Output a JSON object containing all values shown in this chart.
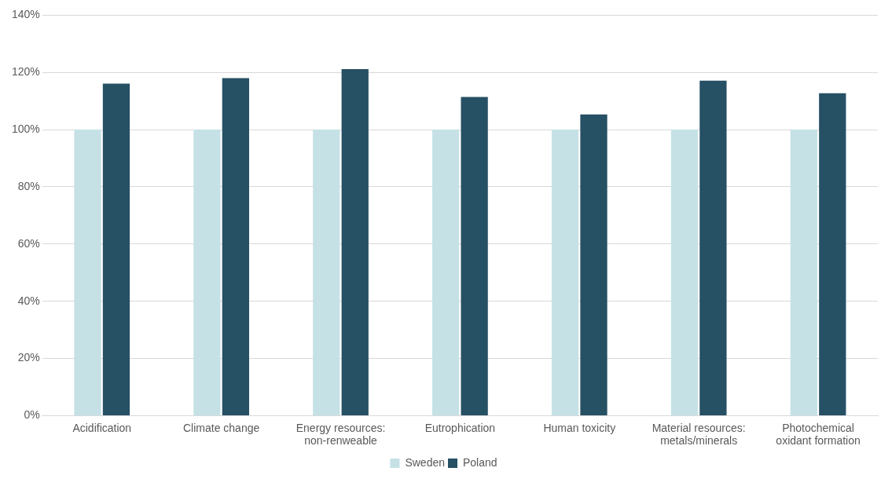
{
  "chart_data": {
    "type": "bar",
    "categories": [
      "Acidification",
      "Climate change",
      "Energy resources: non-renweable",
      "Eutrophication",
      "Human toxicity",
      "Material resources: metals/minerals",
      "Photochemical oxidant formation"
    ],
    "series": [
      {
        "name": "Sweden",
        "color": "#c5e1e6",
        "values": [
          100,
          100,
          100,
          100,
          100,
          100,
          100
        ]
      },
      {
        "name": "Poland",
        "color": "#265064",
        "values": [
          116.1,
          118.0,
          121.2,
          111.4,
          105.3,
          117.1,
          112.7
        ]
      }
    ],
    "ylim": [
      0,
      140
    ],
    "yticks": [
      {
        "value": 0,
        "label": "0%"
      },
      {
        "value": 20,
        "label": "20%"
      },
      {
        "value": 40,
        "label": "40%"
      },
      {
        "value": 60,
        "label": "60%"
      },
      {
        "value": 80,
        "label": "80%"
      },
      {
        "value": 100,
        "label": "100%"
      },
      {
        "value": 120,
        "label": "120%"
      },
      {
        "value": 140,
        "label": "140%"
      }
    ],
    "grid": "y",
    "legend": "bottom"
  }
}
